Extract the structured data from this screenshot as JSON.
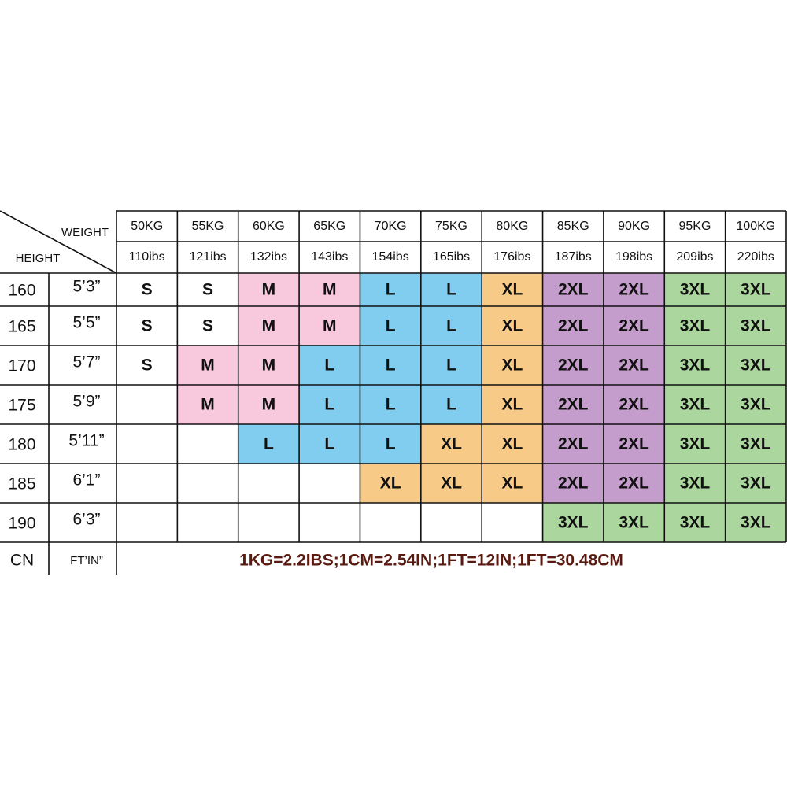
{
  "labels": {
    "weight": "WEIGHT",
    "height": "HEIGHT",
    "cn": "CN",
    "ft_in": "FT’IN”"
  },
  "weights": {
    "kg": [
      "50KG",
      "55KG",
      "60KG",
      "65KG",
      "70KG",
      "75KG",
      "80KG",
      "85KG",
      "90KG",
      "95KG",
      "100KG"
    ],
    "lbs": [
      "110ibs",
      "121ibs",
      "132ibs",
      "143ibs",
      "154ibs",
      "165ibs",
      "176ibs",
      "187ibs",
      "198ibs",
      "209ibs",
      "220ibs"
    ]
  },
  "rows": [
    {
      "cm": "160",
      "ft": "5’3”",
      "sizes": [
        "S",
        "S",
        "M",
        "M",
        "L",
        "L",
        "XL",
        "2XL",
        "2XL",
        "3XL",
        "3XL"
      ]
    },
    {
      "cm": "165",
      "ft": "5’5”",
      "sizes": [
        "S",
        "S",
        "M",
        "M",
        "L",
        "L",
        "XL",
        "2XL",
        "2XL",
        "3XL",
        "3XL"
      ]
    },
    {
      "cm": "170",
      "ft": "5’7”",
      "sizes": [
        "S",
        "M",
        "M",
        "L",
        "L",
        "L",
        "XL",
        "2XL",
        "2XL",
        "3XL",
        "3XL"
      ]
    },
    {
      "cm": "175",
      "ft": "5’9”",
      "sizes": [
        null,
        "M",
        "M",
        "L",
        "L",
        "L",
        "XL",
        "2XL",
        "2XL",
        "3XL",
        "3XL"
      ]
    },
    {
      "cm": "180",
      "ft": "5’11”",
      "sizes": [
        null,
        null,
        "L",
        "L",
        "L",
        "XL",
        "XL",
        "2XL",
        "2XL",
        "3XL",
        "3XL"
      ]
    },
    {
      "cm": "185",
      "ft": "6’1”",
      "sizes": [
        null,
        null,
        null,
        null,
        "XL",
        "XL",
        "XL",
        "2XL",
        "2XL",
        "3XL",
        "3XL"
      ]
    },
    {
      "cm": "190",
      "ft": "6’3”",
      "sizes": [
        null,
        null,
        null,
        null,
        null,
        null,
        null,
        "3XL",
        "3XL",
        "3XL",
        "3XL"
      ]
    }
  ],
  "note": "1KG=2.2IBS;1CM=2.54IN;1FT=12IN;1FT=30.48CM",
  "size_colors": {
    "S": "#ffffff",
    "M": "#f8c8dd",
    "L": "#80cdef",
    "XL": "#f8ca88",
    "2XL": "#c59dcc",
    "3XL": "#abd69e"
  }
}
